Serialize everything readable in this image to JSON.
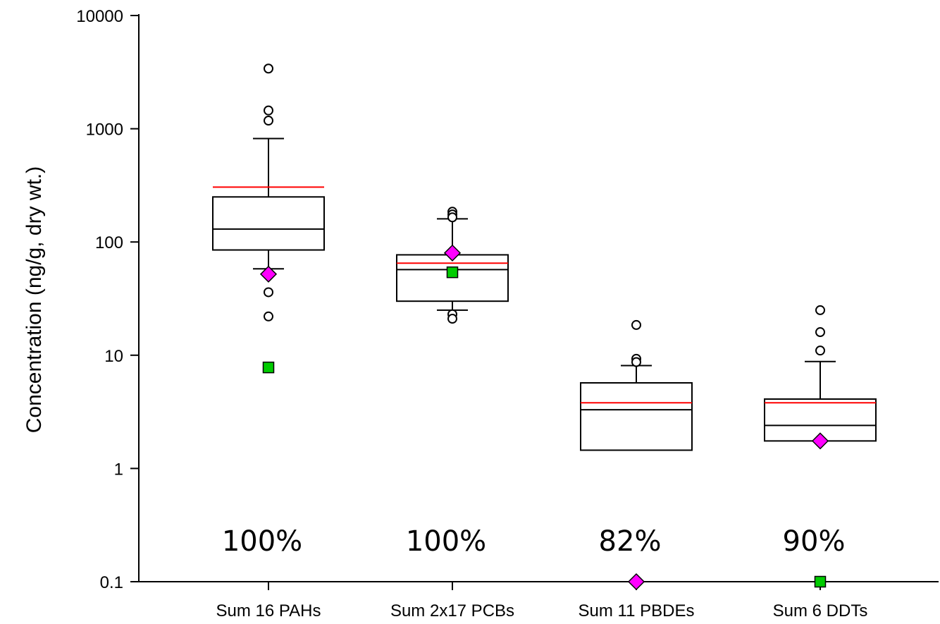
{
  "chart_data": {
    "type": "box",
    "title": "",
    "xlabel": "",
    "ylabel": "Concentration (ng/g, dry wt.)",
    "yscale": "log",
    "ylim": [
      0.1,
      10000
    ],
    "yticks": [
      0.1,
      1,
      10,
      100,
      1000,
      10000
    ],
    "ytick_labels": [
      "0.1",
      "1",
      "10",
      "100",
      "1000",
      "10000"
    ],
    "grid": false,
    "categories": [
      "Sum 16 PAHs",
      "Sum 2x17 PCBs",
      "Sum 11 PBDEs",
      "Sum 6 DDTs"
    ],
    "boxes": [
      {
        "q1": 85,
        "median": 130,
        "q3": 250,
        "mean": 305,
        "whisker_low": 58,
        "whisker_high": 820,
        "outliers": [
          3400,
          1450,
          1180,
          36,
          22
        ]
      },
      {
        "q1": 30,
        "median": 57,
        "q3": 77,
        "mean": 65,
        "whisker_low": 25,
        "whisker_high": 160,
        "outliers": [
          185,
          175,
          165,
          23,
          21
        ]
      },
      {
        "q1": 1.45,
        "median": 3.3,
        "q3": 5.7,
        "mean": 3.8,
        "whisker_low": null,
        "whisker_high": 8.1,
        "outliers": [
          18.5,
          9.3,
          8.7
        ]
      },
      {
        "q1": 1.75,
        "median": 2.4,
        "q3": 4.1,
        "mean": 3.8,
        "whisker_low": null,
        "whisker_high": 8.8,
        "outliers": [
          25,
          16,
          11
        ]
      }
    ],
    "diamond_markers": [
      52,
      80,
      0.1,
      1.75
    ],
    "square_markers": [
      7.8,
      54,
      null,
      0.1
    ],
    "percent_labels": [
      "100%",
      "100%",
      "82%",
      "90%"
    ],
    "colors": {
      "mean_line": "#ff0000",
      "diamond": "#ff00ff",
      "square": "#00cc00",
      "box": "#000000"
    }
  }
}
